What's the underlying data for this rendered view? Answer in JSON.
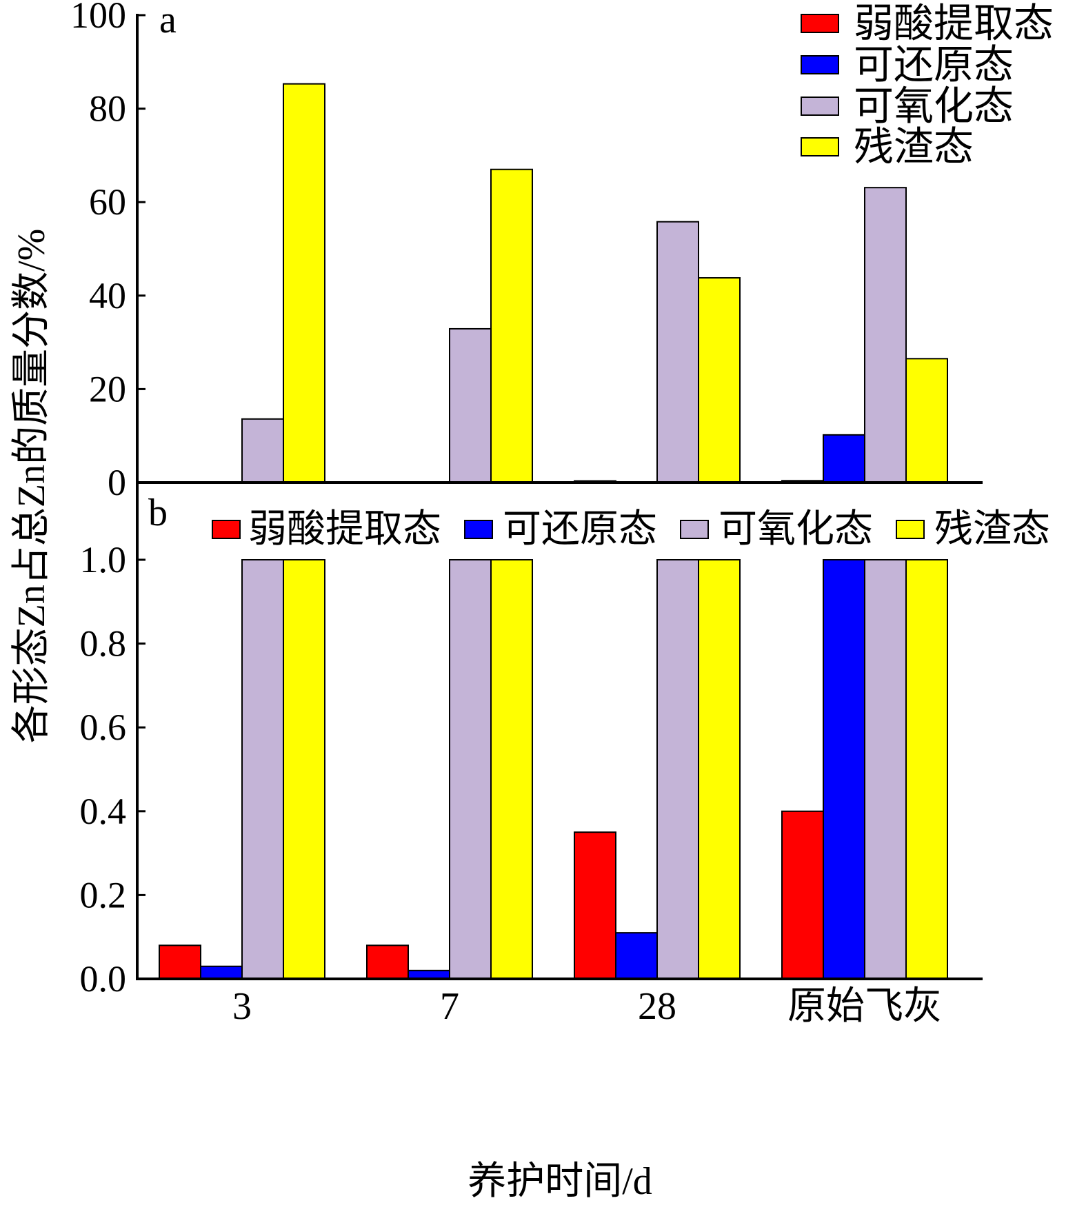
{
  "chart_data": {
    "type": "bar",
    "categories": [
      "3",
      "7",
      "28",
      "原始飞灰"
    ],
    "xlabel": "养护时间/d",
    "ylabel": "各形态Zn占总Zn的质量分数/%",
    "series": [
      {
        "name": "弱酸提取态",
        "color": "#FF0000",
        "values": [
          0.08,
          0.08,
          0.35,
          0.4
        ]
      },
      {
        "name": "可还原态",
        "color": "#0000FF",
        "values": [
          0.03,
          0.02,
          0.11,
          10.2
        ]
      },
      {
        "name": "可氧化态",
        "color": "#C4B4D7",
        "values": [
          13.6,
          32.9,
          55.8,
          63.1
        ]
      },
      {
        "name": "残渣态",
        "color": "#FFFF00",
        "values": [
          85.3,
          67.0,
          43.8,
          26.5
        ]
      }
    ],
    "grid": false,
    "panels": [
      {
        "label": "a",
        "ylim": [
          0,
          100
        ],
        "ytick_labels": [
          "0",
          "20",
          "40",
          "60",
          "80",
          "100"
        ],
        "legend": "top-right"
      },
      {
        "label": "b",
        "ylim": [
          0,
          1.0
        ],
        "ytick_labels": [
          "0.0",
          "0.2",
          "0.4",
          "0.6",
          "0.8",
          "1.0"
        ],
        "legend": "top"
      }
    ]
  }
}
